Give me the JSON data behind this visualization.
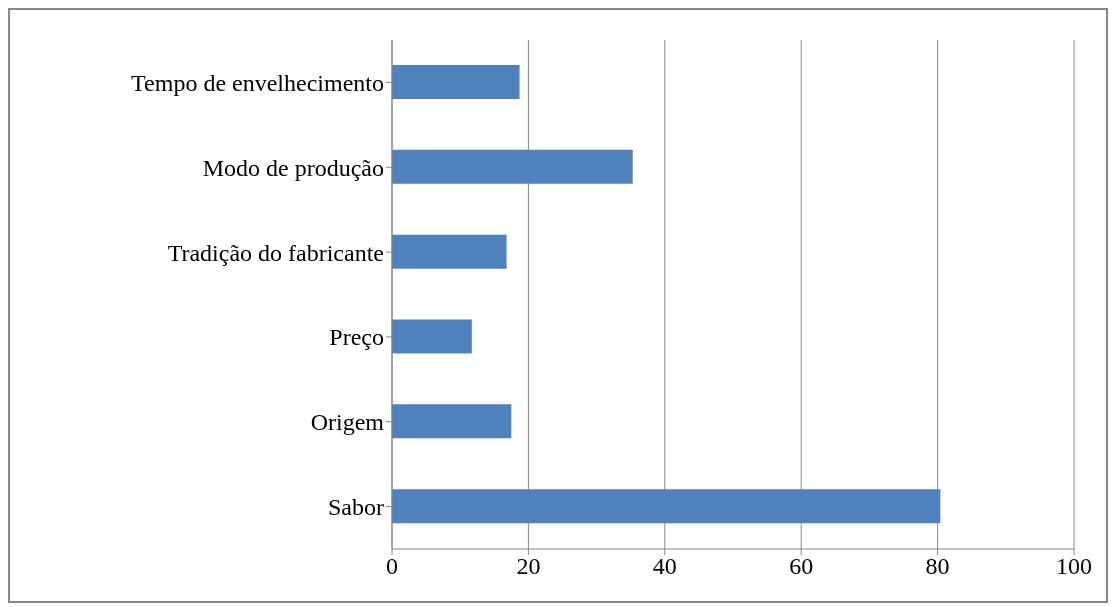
{
  "chart_data": {
    "type": "bar",
    "orientation": "horizontal",
    "categories": [
      "Tempo de envelhecimento",
      "Modo de produção",
      "Tradição do fabricante",
      "Preço",
      "Origem",
      "Sabor"
    ],
    "values": [
      18.7,
      35.3,
      16.8,
      11.7,
      17.5,
      80.4
    ],
    "color": "#4f81bd",
    "xlim": [
      0,
      100
    ],
    "xticks": [
      0,
      20,
      40,
      60,
      80,
      100
    ],
    "grid": "x"
  }
}
